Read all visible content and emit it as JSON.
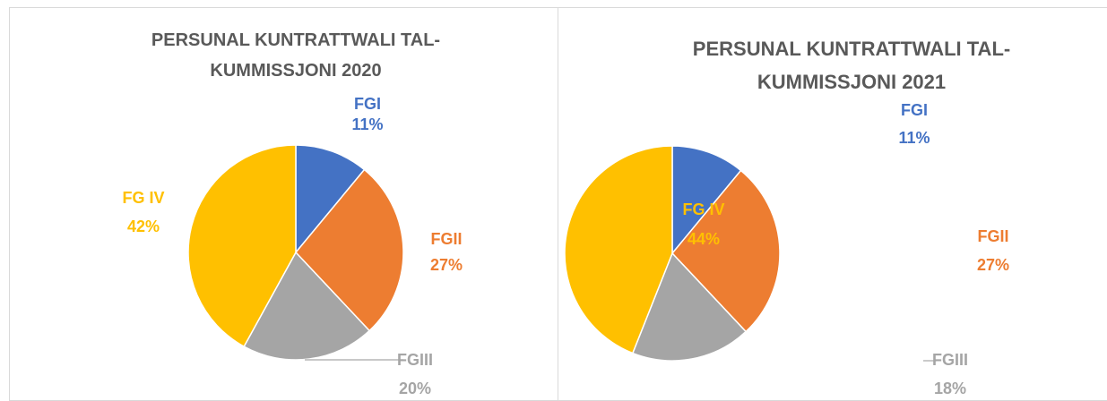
{
  "chart_data": [
    {
      "type": "pie",
      "title": "PERSUNAL KUNTRATTWALI TAL-KUMMISSJONI 2020",
      "categories": [
        "FGI",
        "FGII",
        "FGIII",
        "FG IV"
      ],
      "values": [
        11,
        27,
        20,
        42
      ],
      "value_labels": [
        "11%",
        "27%",
        "20%",
        "42%"
      ],
      "colors": [
        "#4472c4",
        "#ed7d31",
        "#a5a5a5",
        "#ffc000"
      ]
    },
    {
      "type": "pie",
      "title": "PERSUNAL KUNTRATTWALI TAL-KUMMISSJONI 2021",
      "categories": [
        "FGI",
        "FGII",
        "FGIII",
        "FG IV"
      ],
      "values": [
        11,
        27,
        18,
        44
      ],
      "value_labels": [
        "11%",
        "27%",
        "18%",
        "44%"
      ],
      "colors": [
        "#4472c4",
        "#ed7d31",
        "#a5a5a5",
        "#ffc000"
      ]
    }
  ]
}
